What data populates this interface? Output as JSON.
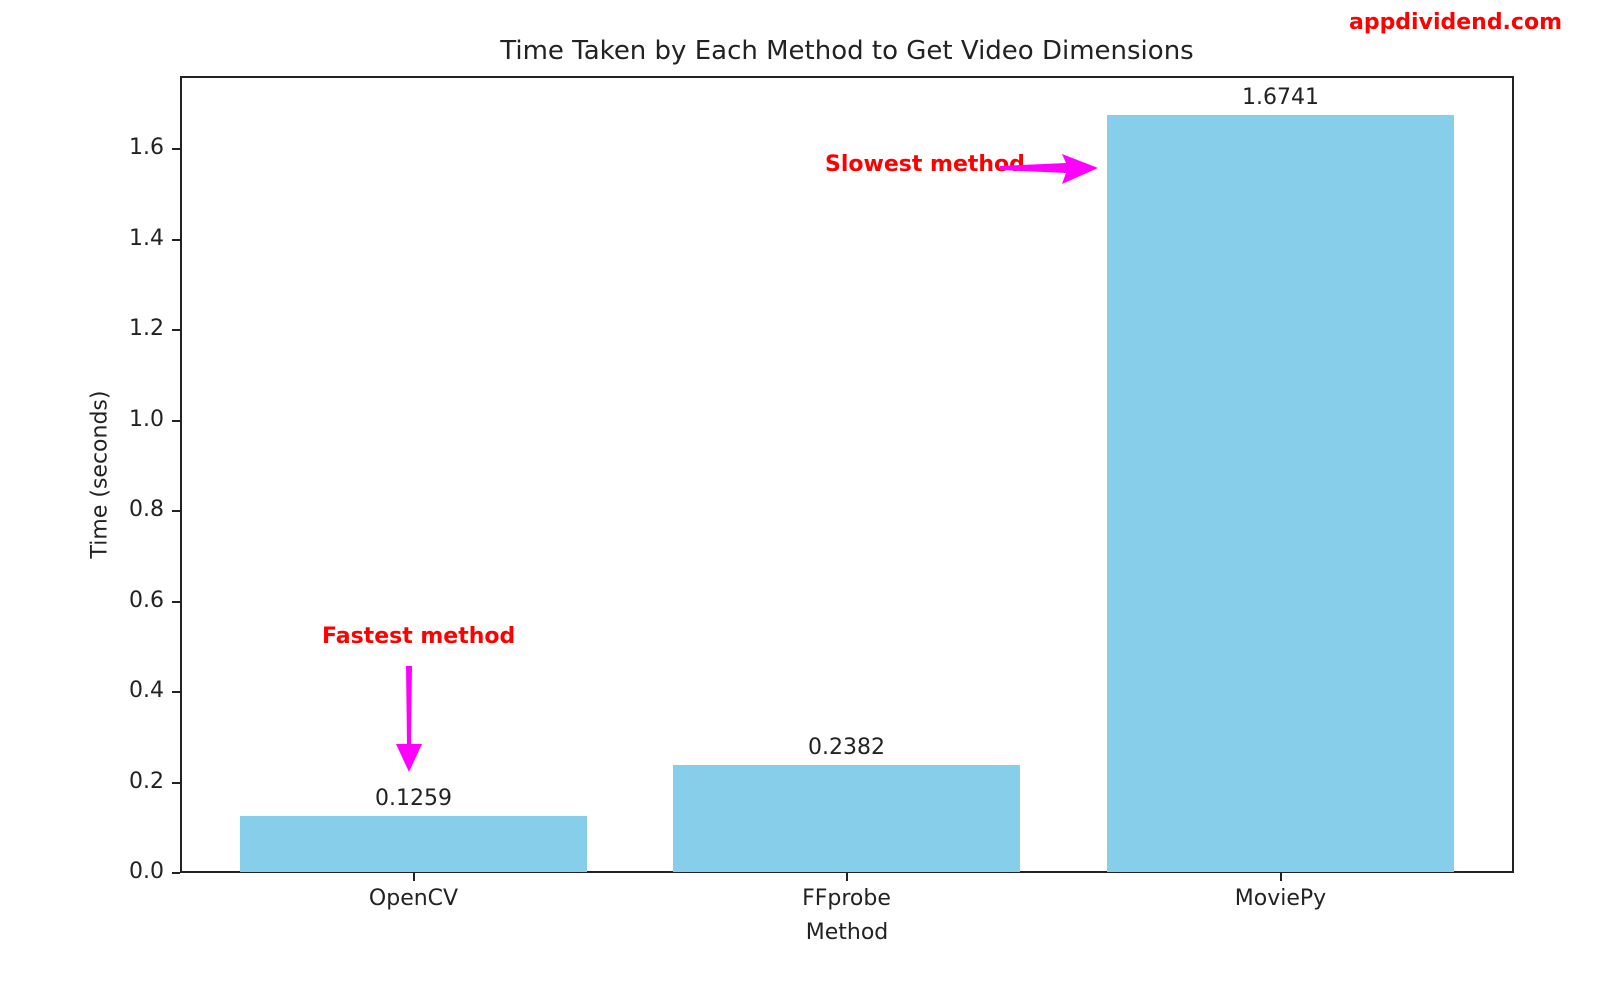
{
  "watermark": "appdividend.com",
  "chart_data": {
    "type": "bar",
    "title": "Time Taken by Each Method to Get Video Dimensions",
    "xlabel": "Method",
    "ylabel": "Time (seconds)",
    "categories": [
      "OpenCV",
      "FFprobe",
      "MoviePy"
    ],
    "values": [
      0.1259,
      0.2382,
      1.6741
    ],
    "value_labels": [
      "0.1259",
      "0.2382",
      "1.6741"
    ],
    "ylim": [
      0,
      1.76
    ],
    "yticks": [
      "0.0",
      "0.2",
      "0.4",
      "0.6",
      "0.8",
      "1.0",
      "1.2",
      "1.4",
      "1.6"
    ],
    "bar_color": "#87ceeb",
    "grid": false,
    "legend": null,
    "annotations": [
      {
        "text": "Fastest method",
        "target": "OpenCV",
        "arrow_color": "#ff00ff",
        "text_color": "#ff0000"
      },
      {
        "text": "Slowest method",
        "target": "MoviePy",
        "arrow_color": "#ff00ff",
        "text_color": "#ff0000"
      }
    ]
  }
}
